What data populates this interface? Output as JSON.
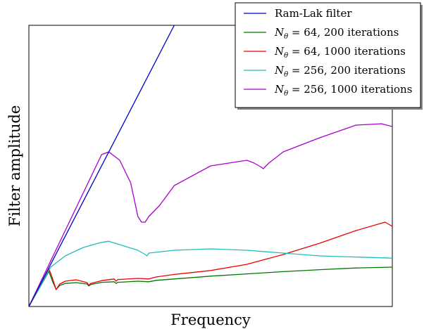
{
  "chart_data": {
    "type": "line",
    "title": "",
    "xlabel": "Frequency",
    "ylabel": "Filter amplitude",
    "xlim": [
      0,
      1
    ],
    "ylim": [
      0,
      1
    ],
    "x_ticks_shown": false,
    "y_ticks_shown": false,
    "grid": false,
    "legend_position": "top-right",
    "series": [
      {
        "name": "Ram-Lak filter",
        "color": "#0000cc",
        "x": [
          0.0,
          0.4
        ],
        "y": [
          0.0,
          1.0
        ]
      },
      {
        "name": "Nθ = 64, 200 iterations",
        "legend_main": "N",
        "legend_sub": "θ",
        "legend_rest": " = 64, 200 iterations",
        "color": "#007700",
        "x": [
          0.0,
          0.055,
          0.065,
          0.075,
          0.085,
          0.1,
          0.13,
          0.16,
          0.165,
          0.17,
          0.2,
          0.235,
          0.24,
          0.245,
          0.3,
          0.33,
          0.35,
          0.4,
          0.5,
          0.6,
          0.7,
          0.8,
          0.9,
          1.0
        ],
        "y": [
          0.0,
          0.125,
          0.09,
          0.06,
          0.075,
          0.082,
          0.085,
          0.08,
          0.073,
          0.078,
          0.086,
          0.088,
          0.082,
          0.086,
          0.09,
          0.088,
          0.093,
          0.098,
          0.108,
          0.116,
          0.124,
          0.131,
          0.137,
          0.14
        ]
      },
      {
        "name": "Nθ = 64, 1000 iterations",
        "legend_main": "N",
        "legend_sub": "θ",
        "legend_rest": " = 64, 1000 iterations",
        "color": "#ee0000",
        "x": [
          0.0,
          0.055,
          0.065,
          0.075,
          0.085,
          0.1,
          0.13,
          0.16,
          0.165,
          0.17,
          0.2,
          0.235,
          0.24,
          0.245,
          0.3,
          0.33,
          0.35,
          0.4,
          0.5,
          0.6,
          0.7,
          0.8,
          0.9,
          0.98,
          1.0
        ],
        "y": [
          0.0,
          0.135,
          0.1,
          0.06,
          0.08,
          0.09,
          0.095,
          0.085,
          0.075,
          0.082,
          0.092,
          0.098,
          0.09,
          0.096,
          0.1,
          0.098,
          0.105,
          0.114,
          0.128,
          0.15,
          0.185,
          0.225,
          0.27,
          0.3,
          0.285
        ]
      },
      {
        "name": "Nθ = 256, 200 iterations",
        "legend_main": "N",
        "legend_sub": "θ",
        "legend_rest": " = 256, 200 iterations",
        "color": "#22bbbb",
        "x": [
          0.0,
          0.06,
          0.1,
          0.15,
          0.2,
          0.22,
          0.3,
          0.32,
          0.325,
          0.33,
          0.4,
          0.5,
          0.6,
          0.7,
          0.8,
          0.9,
          1.0
        ],
        "y": [
          0.0,
          0.14,
          0.18,
          0.21,
          0.228,
          0.232,
          0.2,
          0.185,
          0.18,
          0.19,
          0.2,
          0.205,
          0.2,
          0.19,
          0.18,
          0.176,
          0.172
        ]
      },
      {
        "name": "Nθ = 256, 1000 iterations",
        "legend_main": "N",
        "legend_sub": "θ",
        "legend_rest": " = 256, 1000 iterations",
        "color": "#aa00cc",
        "x": [
          0.0,
          0.2,
          0.22,
          0.25,
          0.28,
          0.3,
          0.31,
          0.32,
          0.33,
          0.36,
          0.4,
          0.5,
          0.6,
          0.62,
          0.64,
          0.645,
          0.66,
          0.7,
          0.8,
          0.9,
          0.97,
          1.0
        ],
        "y": [
          0.0,
          0.54,
          0.55,
          0.52,
          0.44,
          0.32,
          0.3,
          0.3,
          0.32,
          0.36,
          0.43,
          0.5,
          0.52,
          0.51,
          0.495,
          0.49,
          0.51,
          0.55,
          0.6,
          0.645,
          0.65,
          0.64
        ]
      }
    ]
  }
}
